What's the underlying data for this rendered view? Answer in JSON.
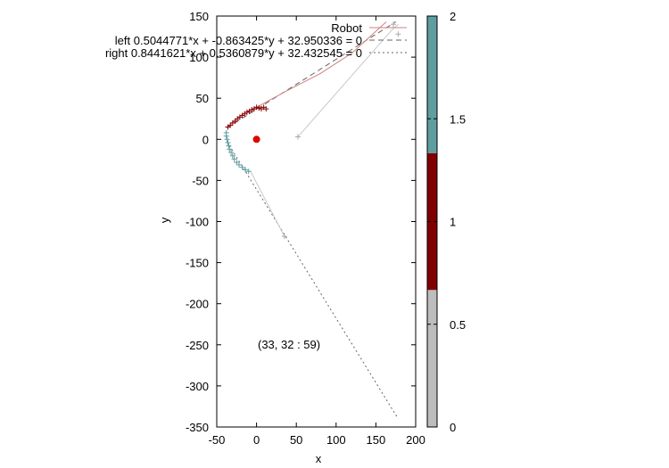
{
  "chart_data": {
    "type": "scatter",
    "xlabel": "x",
    "ylabel": "y",
    "xlim": [
      -50,
      200
    ],
    "ylim": [
      -350,
      150
    ],
    "x_ticks": [
      "-50",
      "0",
      "50",
      "100",
      "150",
      "200"
    ],
    "y_ticks": [
      "150",
      "100",
      "50",
      "0",
      "-50",
      "-100",
      "-150",
      "-200",
      "-250",
      "-300",
      "-350"
    ],
    "legend": {
      "position": "top-right",
      "entries": [
        "Robot",
        "left 0.5044771*x + -0.863425*y + 32.950336 = 0",
        "right 0.8441621*x + 0.5360879*y + 32.432545 = 0"
      ]
    },
    "annotation": "(33, 32 : 59)",
    "colorbar": {
      "ticks": [
        "0",
        "0.5",
        "1",
        "1.5",
        "2"
      ],
      "range": [
        0,
        2
      ],
      "bands": [
        {
          "from": 0,
          "to": 0.667,
          "color": "#bdbdbd"
        },
        {
          "from": 0.667,
          "to": 1.333,
          "color": "#800000"
        },
        {
          "from": 1.333,
          "to": 2,
          "color": "#5f9ea0"
        }
      ]
    },
    "robot_marker": {
      "x": 0,
      "y": 0,
      "color": "#dd0000"
    },
    "robot_line": [
      [
        -37,
        14
      ],
      [
        -33,
        18
      ],
      [
        -28,
        22
      ],
      [
        -22,
        27
      ],
      [
        -15,
        32
      ],
      [
        -8,
        36
      ],
      [
        0,
        39
      ],
      [
        40,
        60
      ],
      [
        80,
        80
      ],
      [
        120,
        105
      ],
      [
        163,
        143
      ]
    ],
    "robot_line_color": "#d08080",
    "left_line": {
      "from": [
        -37,
        14
      ],
      "to": [
        175,
        143
      ],
      "color": "#666666",
      "dash": "6,4"
    },
    "right_line": {
      "from": [
        -37,
        -3
      ],
      "to": [
        178,
        -340
      ],
      "color": "#666666",
      "dash": "2,3"
    },
    "gray_track": [
      [
        52,
        3
      ],
      [
        170,
        133
      ],
      [
        178,
        140
      ]
    ],
    "gray_track_lower": [
      [
        -8,
        -38
      ],
      [
        35,
        -118
      ]
    ],
    "series": [
      {
        "color": "#8b0000",
        "points": [
          [
            -36,
            15
          ],
          [
            -33,
            17
          ],
          [
            -30,
            20
          ],
          [
            -27,
            22
          ],
          [
            -24,
            25
          ],
          [
            -21,
            27
          ],
          [
            -18,
            29
          ],
          [
            -15,
            31
          ],
          [
            -12,
            33
          ],
          [
            -9,
            34
          ],
          [
            -6,
            36
          ],
          [
            -3,
            37
          ],
          [
            0,
            39
          ],
          [
            3,
            38
          ],
          [
            6,
            37
          ],
          [
            9,
            39
          ],
          [
            12,
            37
          ]
        ]
      },
      {
        "color": "#5f9ea0",
        "points": [
          [
            -38,
            8
          ],
          [
            -38,
            4
          ],
          [
            -37,
            0
          ],
          [
            -36,
            -4
          ],
          [
            -35,
            -8
          ],
          [
            -34,
            -12
          ],
          [
            -32,
            -16
          ],
          [
            -30,
            -20
          ],
          [
            -28,
            -24
          ],
          [
            -25,
            -28
          ],
          [
            -22,
            -31
          ],
          [
            -18,
            -34
          ],
          [
            -14,
            -37
          ],
          [
            -10,
            -39
          ]
        ]
      },
      {
        "color": "#aaaaaa",
        "points": [
          [
            52,
            3
          ],
          [
            35,
            -118
          ],
          [
            172,
            140
          ],
          [
            178,
            128
          ]
        ]
      }
    ]
  }
}
